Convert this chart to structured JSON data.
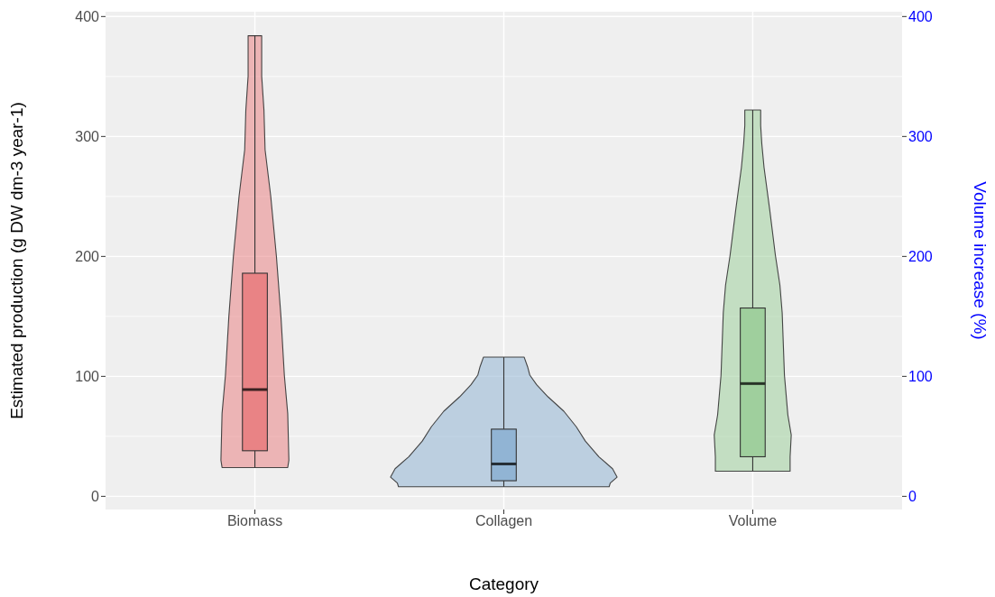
{
  "chart_data": {
    "type": "box",
    "xlabel": "Category",
    "ylabel": "Estimated production (g DW dm-3 year-1)",
    "y2label": "Volume increase (%)",
    "categories": [
      "Biomass",
      "Collagen",
      "Volume"
    ],
    "ylim": [
      -11,
      404
    ],
    "yticks": [
      0,
      100,
      200,
      300,
      400
    ],
    "y2lim": [
      -11,
      404
    ],
    "y2ticks": [
      0,
      100,
      200,
      300,
      400
    ],
    "grid": true,
    "series": [
      {
        "type": "box",
        "color": "#e98385",
        "boxes": [
          {
            "low": 24,
            "q1": 38,
            "median": 89,
            "q3": 186,
            "high": 384
          },
          null,
          null
        ]
      },
      {
        "type": "box",
        "color": "#91b4d4",
        "boxes": [
          null,
          {
            "low": 8,
            "q1": 13,
            "median": 27,
            "q3": 56,
            "high": 116
          },
          null
        ]
      },
      {
        "type": "box",
        "color": "#9fcf9d",
        "boxes": [
          null,
          null,
          {
            "low": 21,
            "q1": 33,
            "median": 94,
            "q3": 157,
            "high": 322
          }
        ]
      }
    ]
  }
}
